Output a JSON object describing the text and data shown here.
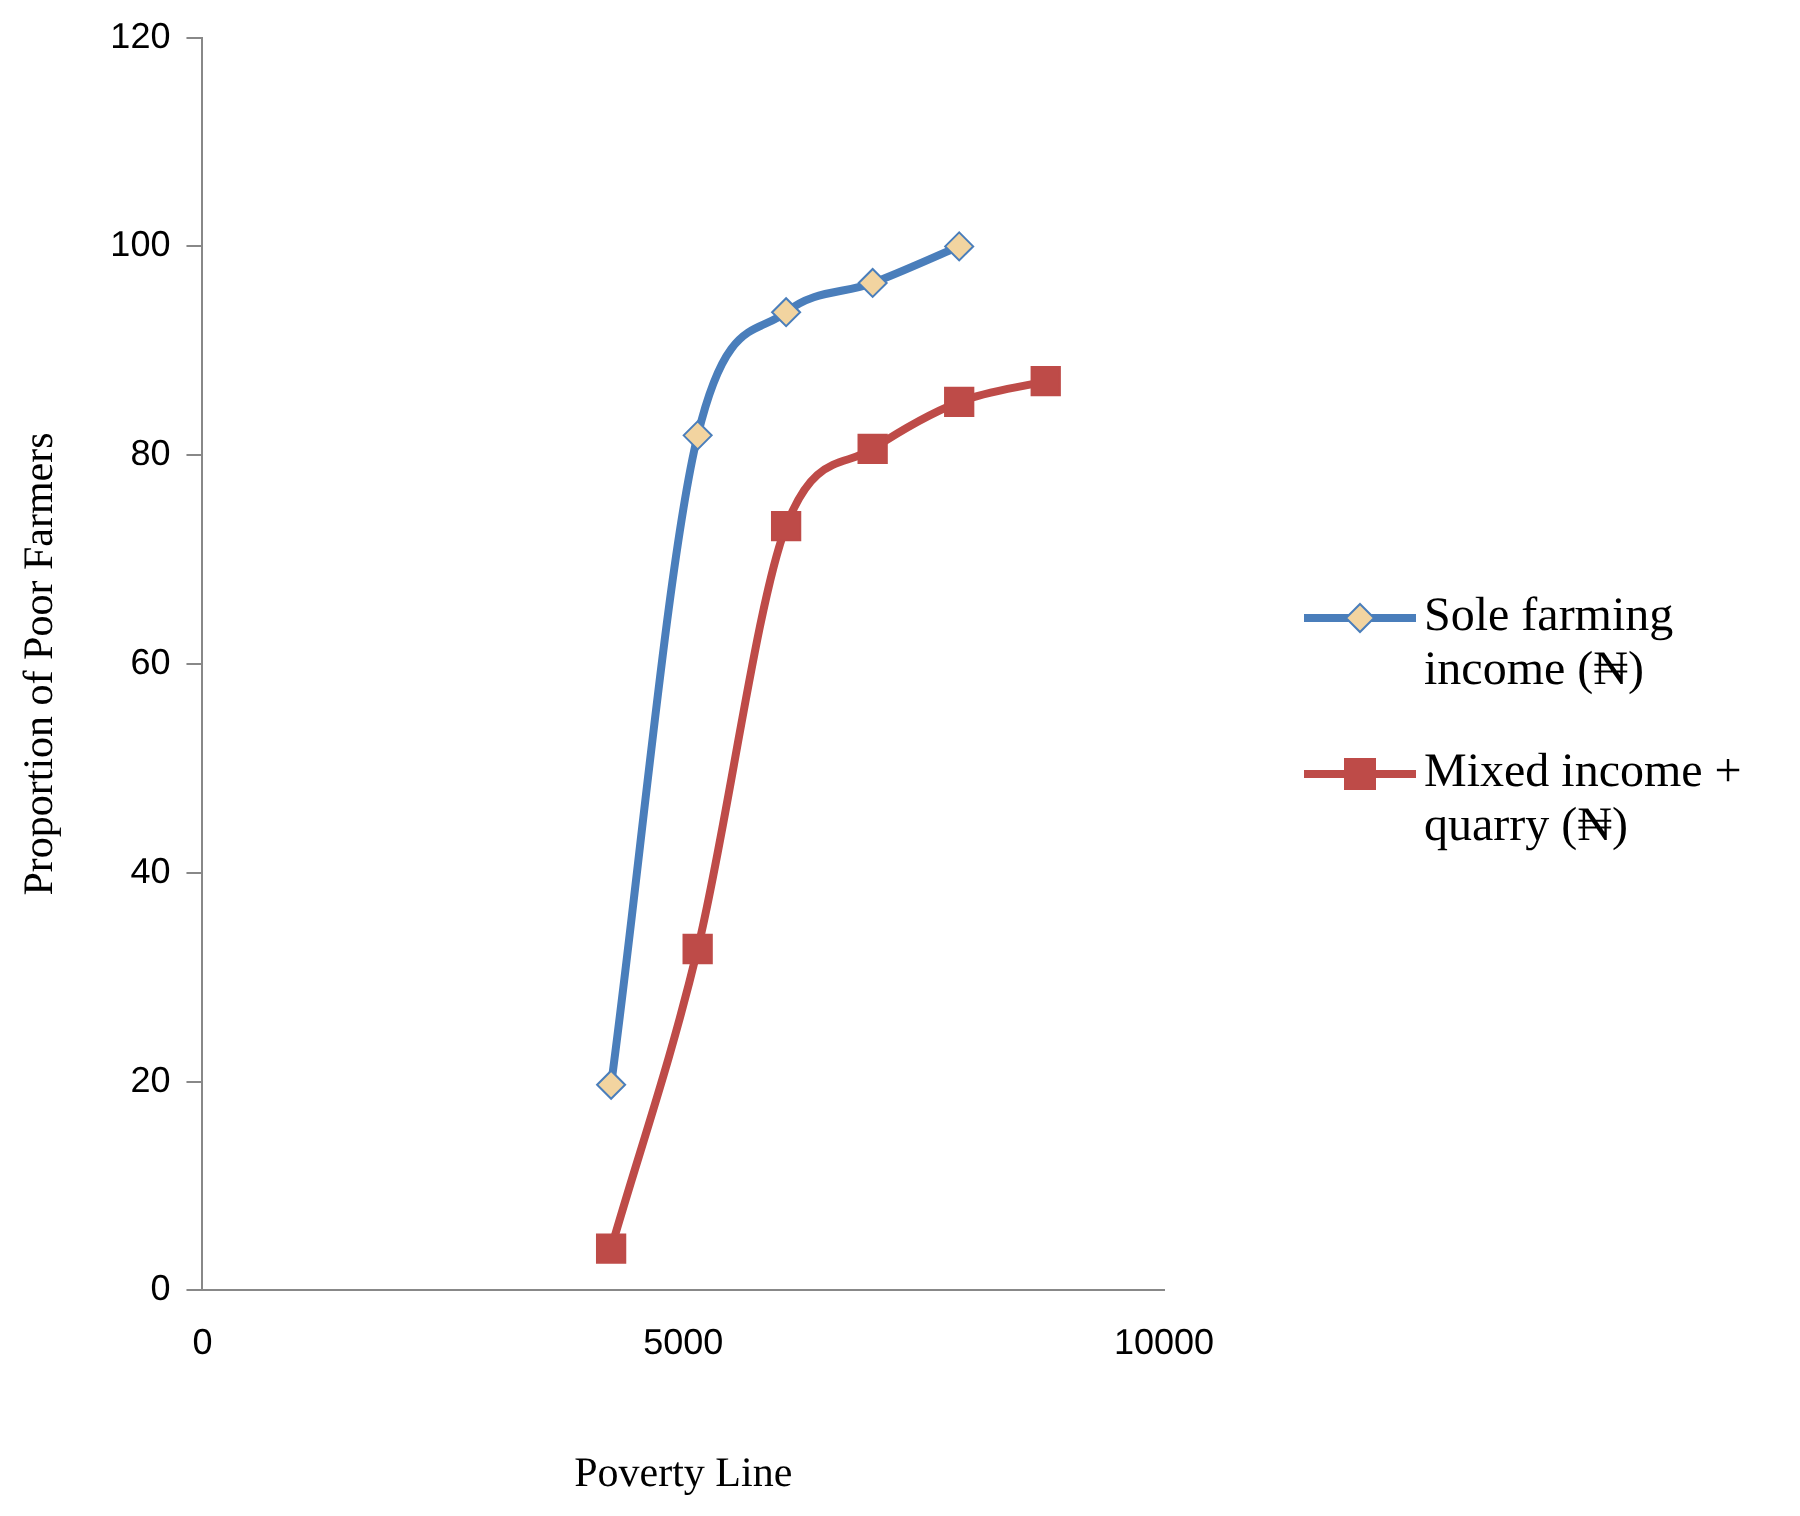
{
  "chart_data": {
    "type": "line",
    "xlabel": "Poverty Line",
    "ylabel": "Proportion of Poor Farmers",
    "xlim": [
      0,
      10000
    ],
    "xticks": [
      0,
      5000,
      10000
    ],
    "ylim": [
      0,
      120
    ],
    "yticks": [
      0,
      20,
      40,
      60,
      80,
      100,
      120
    ],
    "grid": false,
    "legend": "right",
    "series": [
      {
        "name": "Sole farming income (₦)",
        "color": "#4a7ebb",
        "marker": "diamond",
        "x": [
          4250,
          5150,
          6070,
          6970,
          7870
        ],
        "values": [
          19.7,
          81.9,
          93.7,
          96.5,
          100
        ]
      },
      {
        "name": "Mixed income + quarry (₦)",
        "color": "#be4b48",
        "marker": "square",
        "x": [
          4250,
          5150,
          6070,
          6970,
          7870,
          8770
        ],
        "values": [
          4,
          32.7,
          73.2,
          80.6,
          85.1,
          87.1
        ]
      }
    ]
  }
}
